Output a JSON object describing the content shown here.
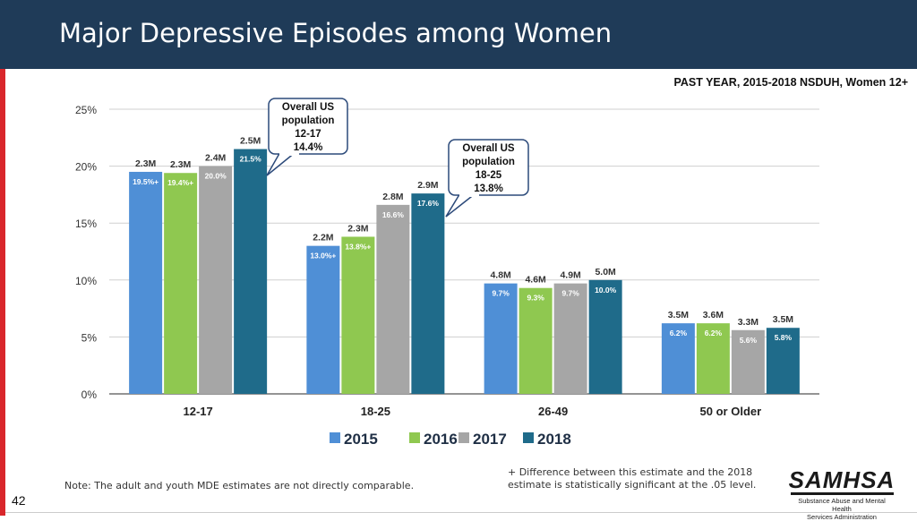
{
  "header": {
    "title": "Major Depressive Episodes among Women"
  },
  "subtitle": "PAST YEAR, 2015-2018 NSDUH, Women 12+",
  "note": "Note: The adult and youth MDE estimates are not directly comparable.",
  "footnote": "+ Difference between this estimate and the 2018 estimate is statistically significant at the .05 level.",
  "page_number": "42",
  "logo": {
    "name": "SAMHSA",
    "subtitle_line1": "Substance Abuse and Mental Health",
    "subtitle_line2": "Services Administration"
  },
  "colors": {
    "header_bg": "#1f3b58",
    "accent_red": "#d9262b",
    "s2015": "#4f8fd6",
    "s2016": "#8fc850",
    "s2017": "#a6a6a6",
    "s2018": "#1f6b8a"
  },
  "chart_data": {
    "type": "bar",
    "title": "Major Depressive Episodes among Women",
    "xlabel": "",
    "ylabel": "",
    "ylim": [
      0,
      25
    ],
    "yticks": [
      "0%",
      "5%",
      "10%",
      "15%",
      "20%",
      "25%"
    ],
    "categories": [
      "12-17",
      "18-25",
      "26-49",
      "50 or Older"
    ],
    "series": [
      {
        "name": "2015",
        "values": [
          19.5,
          13.0,
          9.7,
          6.2
        ],
        "labels": [
          "19.5%+",
          "13.0%+",
          "9.7%",
          "6.2%"
        ],
        "counts": [
          "2.3M",
          "2.2M",
          "4.8M",
          "3.5M"
        ]
      },
      {
        "name": "2016",
        "values": [
          19.4,
          13.8,
          9.3,
          6.2
        ],
        "labels": [
          "19.4%+",
          "13.8%+",
          "9.3%",
          "6.2%"
        ],
        "counts": [
          "2.3M",
          "2.3M",
          "4.6M",
          "3.6M"
        ]
      },
      {
        "name": "2017",
        "values": [
          20.0,
          16.6,
          9.7,
          5.6
        ],
        "labels": [
          "20.0%",
          "16.6%",
          "9.7%",
          "5.6%"
        ],
        "counts": [
          "2.4M",
          "2.8M",
          "4.9M",
          "3.3M"
        ]
      },
      {
        "name": "2018",
        "values": [
          21.5,
          17.6,
          10.0,
          5.8
        ],
        "labels": [
          "21.5%",
          "17.6%",
          "10.0%",
          "5.8%"
        ],
        "counts": [
          "2.5M",
          "2.9M",
          "5.0M",
          "3.5M"
        ]
      }
    ],
    "annotations": [
      {
        "lines": [
          "Overall US",
          "population",
          "12-17",
          "14.4%"
        ],
        "value": 14.4
      },
      {
        "lines": [
          "Overall US",
          "population",
          "18-25",
          "13.8%"
        ],
        "value": 13.8
      }
    ],
    "legend": "bottom-center"
  }
}
